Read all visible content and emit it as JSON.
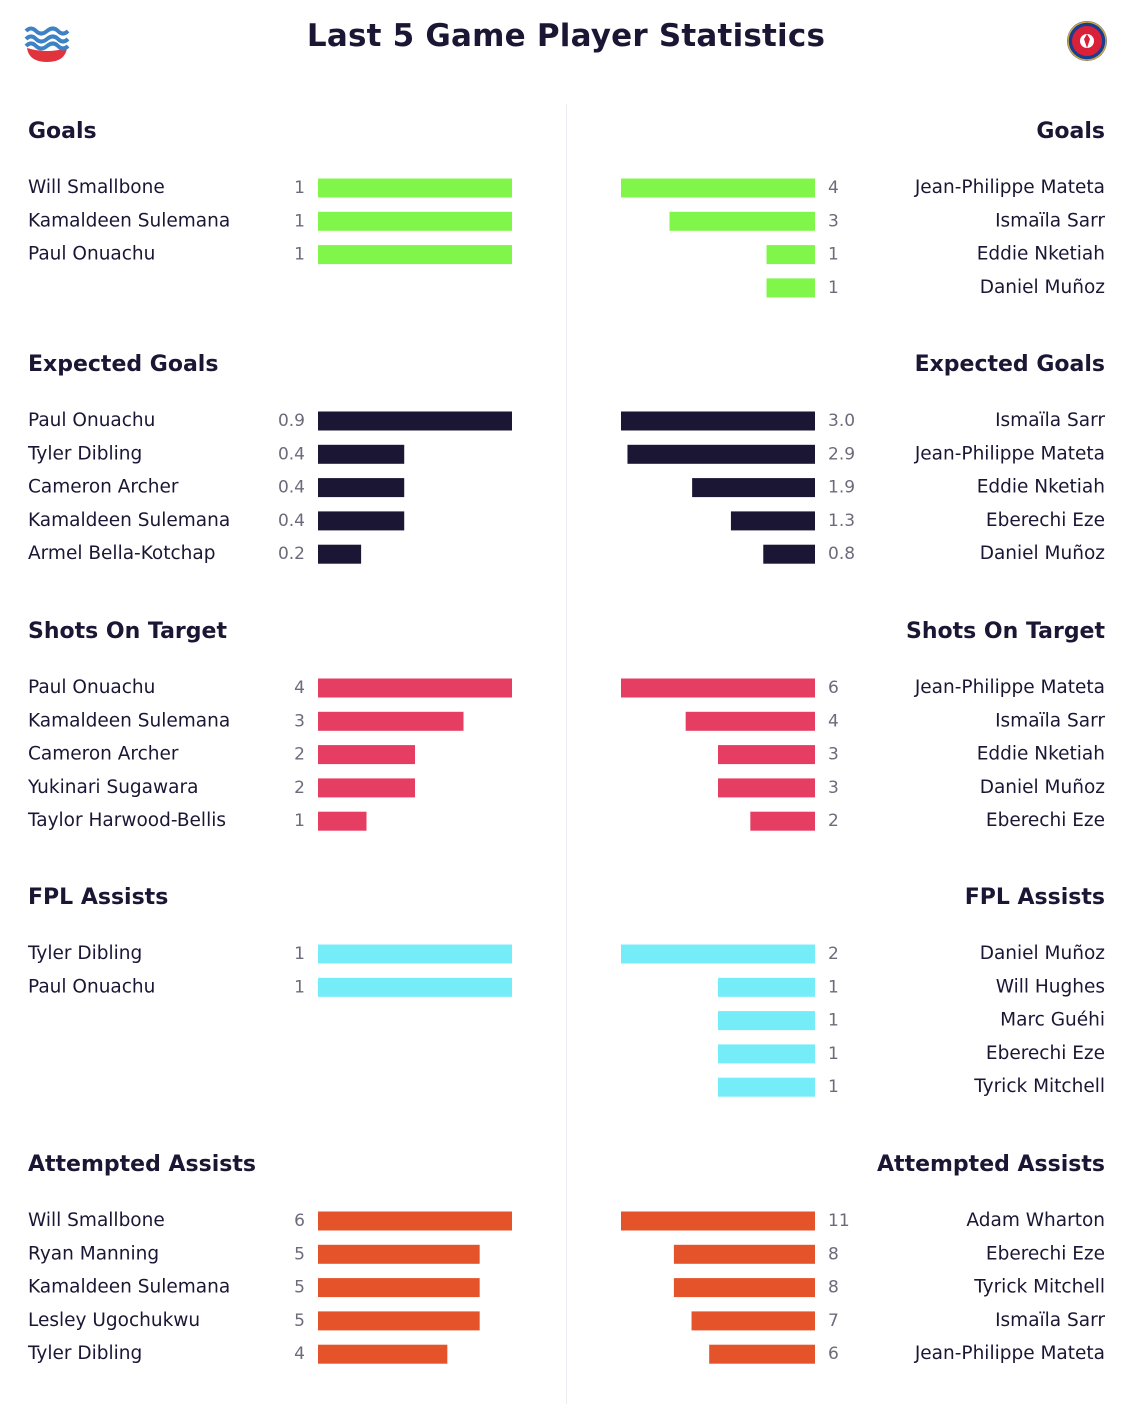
{
  "title": "Last 5 Game Player Statistics",
  "logos": {
    "left": "home-club-crest-icon",
    "right": "away-club-crest-icon"
  },
  "chart_data": {
    "type": "bar",
    "layout": "two-sided horizontal bars",
    "sections": [
      {
        "title": "Goals",
        "color": "#80f54a",
        "left": [
          {
            "name": "Will Smallbone",
            "value": 1,
            "label": "1"
          },
          {
            "name": "Kamaldeen Sulemana",
            "value": 1,
            "label": "1"
          },
          {
            "name": "Paul Onuachu",
            "value": 1,
            "label": "1"
          }
        ],
        "right": [
          {
            "name": "Jean-Philippe Mateta",
            "value": 4,
            "label": "4"
          },
          {
            "name": "Ismaïla Sarr",
            "value": 3,
            "label": "3"
          },
          {
            "name": "Eddie Nketiah",
            "value": 1,
            "label": "1"
          },
          {
            "name": "Daniel Muñoz",
            "value": 1,
            "label": "1"
          }
        ]
      },
      {
        "title": "Expected Goals",
        "color": "#1a1634",
        "left": [
          {
            "name": "Paul Onuachu",
            "value": 0.9,
            "label": "0.9"
          },
          {
            "name": "Tyler Dibling",
            "value": 0.4,
            "label": "0.4"
          },
          {
            "name": "Cameron Archer",
            "value": 0.4,
            "label": "0.4"
          },
          {
            "name": "Kamaldeen Sulemana",
            "value": 0.4,
            "label": "0.4"
          },
          {
            "name": "Armel Bella-Kotchap",
            "value": 0.2,
            "label": "0.2"
          }
        ],
        "right": [
          {
            "name": "Ismaïla Sarr",
            "value": 3.0,
            "label": "3.0"
          },
          {
            "name": "Jean-Philippe Mateta",
            "value": 2.9,
            "label": "2.9"
          },
          {
            "name": "Eddie Nketiah",
            "value": 1.9,
            "label": "1.9"
          },
          {
            "name": "Eberechi Eze",
            "value": 1.3,
            "label": "1.3"
          },
          {
            "name": "Daniel Muñoz",
            "value": 0.8,
            "label": "0.8"
          }
        ]
      },
      {
        "title": "Shots On Target",
        "color": "#e63e62",
        "left": [
          {
            "name": "Paul Onuachu",
            "value": 4,
            "label": "4"
          },
          {
            "name": "Kamaldeen Sulemana",
            "value": 3,
            "label": "3"
          },
          {
            "name": "Cameron Archer",
            "value": 2,
            "label": "2"
          },
          {
            "name": "Yukinari Sugawara",
            "value": 2,
            "label": "2"
          },
          {
            "name": "Taylor Harwood-Bellis",
            "value": 1,
            "label": "1"
          }
        ],
        "right": [
          {
            "name": "Jean-Philippe Mateta",
            "value": 6,
            "label": "6"
          },
          {
            "name": "Ismaïla Sarr",
            "value": 4,
            "label": "4"
          },
          {
            "name": "Eddie Nketiah",
            "value": 3,
            "label": "3"
          },
          {
            "name": "Daniel Muñoz",
            "value": 3,
            "label": "3"
          },
          {
            "name": "Eberechi Eze",
            "value": 2,
            "label": "2"
          }
        ]
      },
      {
        "title": "FPL Assists",
        "color": "#75edf8",
        "left": [
          {
            "name": "Tyler Dibling",
            "value": 1,
            "label": "1"
          },
          {
            "name": "Paul Onuachu",
            "value": 1,
            "label": "1"
          }
        ],
        "right": [
          {
            "name": "Daniel Muñoz",
            "value": 2,
            "label": "2"
          },
          {
            "name": "Will Hughes",
            "value": 1,
            "label": "1"
          },
          {
            "name": "Marc Guéhi",
            "value": 1,
            "label": "1"
          },
          {
            "name": "Eberechi Eze",
            "value": 1,
            "label": "1"
          },
          {
            "name": "Tyrick Mitchell",
            "value": 1,
            "label": "1"
          }
        ]
      },
      {
        "title": "Attempted Assists",
        "color": "#e5532a",
        "left": [
          {
            "name": "Will Smallbone",
            "value": 6,
            "label": "6"
          },
          {
            "name": "Ryan Manning",
            "value": 5,
            "label": "5"
          },
          {
            "name": "Kamaldeen Sulemana",
            "value": 5,
            "label": "5"
          },
          {
            "name": "Lesley Ugochukwu",
            "value": 5,
            "label": "5"
          },
          {
            "name": "Tyler Dibling",
            "value": 4,
            "label": "4"
          }
        ],
        "right": [
          {
            "name": "Adam Wharton",
            "value": 11,
            "label": "11"
          },
          {
            "name": "Eberechi Eze",
            "value": 8,
            "label": "8"
          },
          {
            "name": "Tyrick Mitchell",
            "value": 8,
            "label": "8"
          },
          {
            "name": "Ismaïla Sarr",
            "value": 7,
            "label": "7"
          },
          {
            "name": "Jean-Philippe Mateta",
            "value": 6,
            "label": "6"
          }
        ]
      }
    ]
  }
}
